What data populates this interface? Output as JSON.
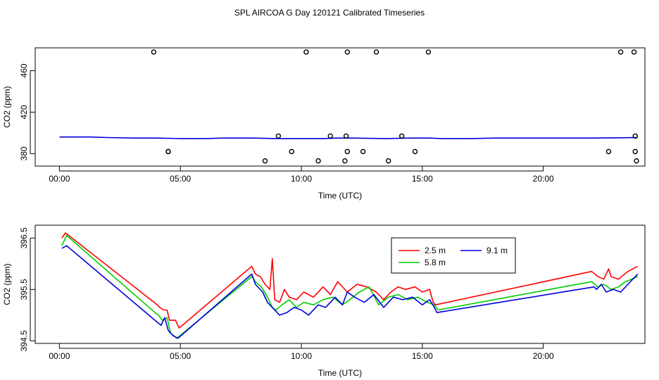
{
  "figure": {
    "title": "SPL AIRCOA G  Day 120121  Calibrated Timeseries"
  },
  "chart_data": [
    {
      "type": "line",
      "name": "top",
      "xlabel": "Time (UTC)",
      "ylabel": "CO2 (ppm)",
      "xlim": [
        -1,
        24.2
      ],
      "ylim": [
        368,
        482
      ],
      "x_ticks": [
        0,
        5,
        10,
        15,
        20
      ],
      "x_tick_labels": [
        "00:00",
        "05:00",
        "10:00",
        "15:00",
        "20:00"
      ],
      "y_ticks": [
        380,
        420,
        460
      ],
      "y_tick_labels": [
        "380",
        "420",
        "460"
      ],
      "series": [
        {
          "name": "calibrated",
          "color": "#0000dd",
          "x": [
            0,
            1.3,
            2,
            3.2,
            4,
            5,
            6,
            6.8,
            8,
            9,
            10,
            10.9,
            11.5,
            12.2,
            13.5,
            14.5,
            15.3,
            15.8,
            17,
            18,
            20,
            22,
            23.9
          ],
          "y": [
            396,
            396,
            395.5,
            395,
            395,
            394.5,
            394.5,
            395,
            395,
            394.5,
            394.5,
            394.5,
            395,
            395,
            394.5,
            395,
            395,
            394.5,
            394.5,
            395,
            395,
            395,
            395.5
          ]
        }
      ],
      "points": {
        "x": [
          3.9,
          10.2,
          11.9,
          13.1,
          15.25,
          23.2,
          23.75,
          4.5,
          9.05,
          11.2,
          11.85,
          14.15,
          23.8,
          4.5,
          9.6,
          11.9,
          12.55,
          14.7,
          22.7,
          23.8,
          8.5,
          10.7,
          11.8,
          13.6,
          23.85
        ],
        "y": [
          478,
          478,
          478,
          478,
          478,
          478,
          478,
          382,
          397,
          397,
          397,
          397,
          397,
          382,
          382,
          382,
          382,
          382,
          382,
          382,
          373,
          373,
          373,
          373,
          373
        ]
      }
    },
    {
      "type": "line",
      "name": "bottom",
      "xlabel": "Time (UTC)",
      "ylabel": "CO2 (ppm)",
      "xlim": [
        -1,
        24.2
      ],
      "ylim": [
        394.45,
        396.75
      ],
      "x_ticks": [
        0,
        5,
        10,
        15,
        20
      ],
      "x_tick_labels": [
        "00:00",
        "05:00",
        "10:00",
        "15:00",
        "20:00"
      ],
      "y_ticks": [
        394.5,
        395.5,
        396.5
      ],
      "y_tick_labels": [
        "394.5",
        "395.5",
        "396.5"
      ],
      "legend": {
        "position": "top-right-inner",
        "entries": [
          "2.5 m",
          "5.8 m",
          "9.1 m"
        ]
      },
      "series": [
        {
          "name": "2.5 m",
          "color": "#ff0000",
          "x": [
            0.1,
            0.25,
            4.05,
            4.15,
            4.3,
            4.45,
            4.55,
            4.8,
            4.95,
            7.95,
            8.1,
            8.3,
            8.5,
            8.7,
            8.8,
            8.9,
            9.1,
            9.3,
            9.5,
            9.8,
            10.1,
            10.5,
            10.9,
            11.2,
            11.5,
            11.9,
            12.3,
            12.7,
            13.1,
            13.4,
            13.7,
            14.0,
            14.3,
            14.7,
            15.0,
            15.3,
            15.45,
            15.55,
            22.0,
            22.25,
            22.5,
            22.7,
            22.8,
            23.1,
            23.5,
            23.9
          ],
          "y": [
            396.5,
            396.6,
            395.2,
            395.15,
            395.1,
            395.1,
            394.9,
            394.9,
            394.75,
            395.95,
            395.8,
            395.75,
            395.6,
            395.5,
            396.1,
            395.3,
            395.25,
            395.5,
            395.35,
            395.3,
            395.45,
            395.35,
            395.55,
            395.4,
            395.65,
            395.45,
            395.6,
            395.55,
            395.45,
            395.3,
            395.45,
            395.55,
            395.5,
            395.55,
            395.45,
            395.5,
            395.25,
            395.2,
            395.85,
            395.75,
            395.7,
            395.9,
            395.75,
            395.7,
            395.85,
            395.95
          ]
        },
        {
          "name": "5.8 m",
          "color": "#00cc00",
          "x": [
            0.1,
            0.3,
            3.95,
            4.1,
            4.25,
            4.45,
            4.6,
            4.85,
            7.95,
            8.1,
            8.35,
            8.6,
            8.8,
            8.95,
            9.2,
            9.5,
            9.8,
            10.1,
            10.5,
            10.9,
            11.3,
            11.7,
            12.0,
            12.4,
            12.8,
            13.2,
            13.6,
            14.0,
            14.4,
            14.8,
            15.2,
            15.5,
            15.65,
            22.0,
            22.25,
            22.5,
            22.8,
            23.1,
            23.4,
            23.9
          ],
          "y": [
            396.35,
            396.55,
            395.05,
            395.0,
            394.9,
            394.95,
            394.65,
            394.55,
            395.75,
            395.65,
            395.55,
            395.35,
            395.15,
            395.1,
            395.2,
            395.3,
            395.15,
            395.25,
            395.2,
            395.3,
            395.35,
            395.2,
            395.3,
            395.45,
            395.55,
            395.2,
            395.35,
            395.4,
            395.3,
            395.35,
            395.25,
            395.2,
            395.1,
            395.65,
            395.55,
            395.6,
            395.5,
            395.55,
            395.65,
            395.75
          ]
        },
        {
          "name": "9.1 m",
          "color": "#0000dd",
          "x": [
            0.1,
            0.3,
            4.2,
            4.35,
            4.5,
            4.7,
            4.9,
            7.95,
            8.1,
            8.4,
            8.6,
            8.8,
            9.1,
            9.4,
            9.7,
            10.0,
            10.3,
            10.7,
            11.0,
            11.4,
            11.7,
            11.9,
            12.2,
            12.6,
            13.0,
            13.4,
            13.8,
            14.2,
            14.6,
            15.0,
            15.3,
            15.5,
            15.6,
            22.1,
            22.2,
            22.4,
            22.6,
            22.9,
            23.2,
            23.5,
            23.9
          ],
          "y": [
            396.3,
            396.35,
            394.8,
            394.95,
            394.7,
            394.6,
            394.55,
            395.8,
            395.6,
            395.45,
            395.25,
            395.15,
            395.0,
            395.05,
            395.15,
            395.1,
            395.0,
            395.2,
            395.15,
            395.35,
            395.2,
            395.45,
            395.35,
            395.25,
            395.4,
            395.15,
            395.35,
            395.3,
            395.35,
            395.2,
            395.3,
            395.15,
            395.05,
            395.55,
            395.5,
            395.6,
            395.45,
            395.5,
            395.45,
            395.6,
            395.8
          ]
        }
      ]
    }
  ]
}
